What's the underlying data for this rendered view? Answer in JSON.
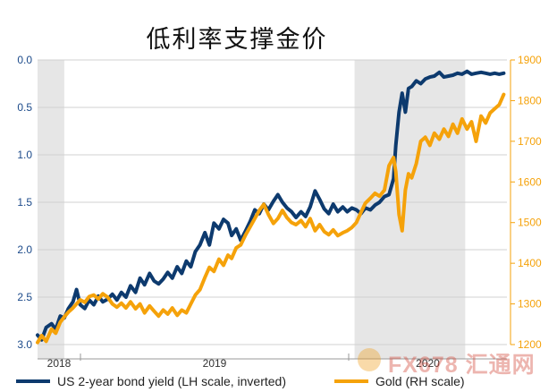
{
  "page": {
    "title": "低利率支撑金价"
  },
  "chart_data": {
    "type": "line",
    "title": "低利率支撑金价",
    "x_labels": [
      "2018",
      "2019",
      "2020"
    ],
    "left_axis": {
      "label": "US 2-year bond yield (LH scale, inverted)",
      "inverted": true,
      "ylim": [
        0.0,
        3.0
      ],
      "tick_labels": [
        "0.0",
        "0.5",
        "1.0",
        "1.5",
        "2.0",
        "2.5",
        "3.0"
      ],
      "color": "#1b4a8a"
    },
    "right_axis": {
      "label": "Gold (RH scale)",
      "ylim": [
        1200,
        1900
      ],
      "tick_labels": [
        "1900",
        "1800",
        "1700",
        "1600",
        "1500",
        "1400",
        "1300",
        "1200"
      ],
      "color": "#f5a20a"
    },
    "shaded_regions": [
      {
        "from": "2018-01",
        "to": "2018-03"
      },
      {
        "from": "2019-12",
        "to": "2020-08"
      }
    ],
    "grid": "horizontal",
    "legend_position": "bottom",
    "series": [
      {
        "name": "US 2-year bond yield (LH scale, inverted)",
        "axis": "left",
        "color": "#0d3a6e",
        "points": [
          [
            "2018-01-01",
            2.9
          ],
          [
            "2018-01-10",
            2.95
          ],
          [
            "2018-01-20",
            2.82
          ],
          [
            "2018-02-01",
            2.78
          ],
          [
            "2018-02-10",
            2.84
          ],
          [
            "2018-02-20",
            2.7
          ],
          [
            "2018-03-01",
            2.72
          ],
          [
            "2018-03-10",
            2.62
          ],
          [
            "2018-03-20",
            2.55
          ],
          [
            "2018-03-28",
            2.42
          ],
          [
            "2018-04-05",
            2.58
          ],
          [
            "2018-04-15",
            2.62
          ],
          [
            "2018-04-25",
            2.53
          ],
          [
            "2018-05-05",
            2.58
          ],
          [
            "2018-05-15",
            2.49
          ],
          [
            "2018-05-25",
            2.55
          ],
          [
            "2018-06-05",
            2.52
          ],
          [
            "2018-06-15",
            2.47
          ],
          [
            "2018-06-25",
            2.53
          ],
          [
            "2018-07-05",
            2.45
          ],
          [
            "2018-07-15",
            2.5
          ],
          [
            "2018-07-25",
            2.38
          ],
          [
            "2018-08-05",
            2.45
          ],
          [
            "2018-08-15",
            2.3
          ],
          [
            "2018-08-25",
            2.37
          ],
          [
            "2018-09-05",
            2.25
          ],
          [
            "2018-09-15",
            2.33
          ],
          [
            "2018-09-25",
            2.36
          ],
          [
            "2018-10-05",
            2.31
          ],
          [
            "2018-10-15",
            2.24
          ],
          [
            "2018-10-25",
            2.3
          ],
          [
            "2018-11-05",
            2.18
          ],
          [
            "2018-11-15",
            2.25
          ],
          [
            "2018-11-25",
            2.12
          ],
          [
            "2018-12-05",
            2.18
          ],
          [
            "2018-12-15",
            2.02
          ],
          [
            "2018-12-25",
            1.95
          ],
          [
            "2019-01-05",
            1.82
          ],
          [
            "2019-01-15",
            1.95
          ],
          [
            "2019-01-25",
            1.72
          ],
          [
            "2019-02-05",
            1.78
          ],
          [
            "2019-02-15",
            1.68
          ],
          [
            "2019-02-25",
            1.72
          ],
          [
            "2019-03-05",
            1.85
          ],
          [
            "2019-03-15",
            1.78
          ],
          [
            "2019-03-25",
            1.9
          ],
          [
            "2019-04-05",
            1.8
          ],
          [
            "2019-04-15",
            1.7
          ],
          [
            "2019-04-25",
            1.58
          ],
          [
            "2019-05-05",
            1.62
          ],
          [
            "2019-05-15",
            1.52
          ],
          [
            "2019-05-25",
            1.58
          ],
          [
            "2019-06-05",
            1.49
          ],
          [
            "2019-06-15",
            1.42
          ],
          [
            "2019-06-25",
            1.5
          ],
          [
            "2019-07-05",
            1.56
          ],
          [
            "2019-07-15",
            1.6
          ],
          [
            "2019-07-25",
            1.66
          ],
          [
            "2019-08-05",
            1.6
          ],
          [
            "2019-08-15",
            1.65
          ],
          [
            "2019-08-25",
            1.55
          ],
          [
            "2019-09-05",
            1.38
          ],
          [
            "2019-09-15",
            1.47
          ],
          [
            "2019-09-25",
            1.57
          ],
          [
            "2019-10-05",
            1.62
          ],
          [
            "2019-10-15",
            1.52
          ],
          [
            "2019-10-25",
            1.6
          ],
          [
            "2019-11-05",
            1.55
          ],
          [
            "2019-11-15",
            1.6
          ],
          [
            "2019-11-25",
            1.56
          ],
          [
            "2019-12-05",
            1.58
          ],
          [
            "2019-12-15",
            1.62
          ],
          [
            "2019-12-25",
            1.56
          ],
          [
            "2020-01-05",
            1.58
          ],
          [
            "2020-01-15",
            1.53
          ],
          [
            "2020-01-25",
            1.5
          ],
          [
            "2020-02-05",
            1.44
          ],
          [
            "2020-02-15",
            1.42
          ],
          [
            "2020-02-25",
            1.25
          ],
          [
            "2020-03-01",
            0.9
          ],
          [
            "2020-03-08",
            0.55
          ],
          [
            "2020-03-15",
            0.35
          ],
          [
            "2020-03-22",
            0.55
          ],
          [
            "2020-03-29",
            0.3
          ],
          [
            "2020-04-05",
            0.28
          ],
          [
            "2020-04-15",
            0.22
          ],
          [
            "2020-04-25",
            0.25
          ],
          [
            "2020-05-05",
            0.2
          ],
          [
            "2020-05-15",
            0.18
          ],
          [
            "2020-05-25",
            0.17
          ],
          [
            "2020-06-05",
            0.13
          ],
          [
            "2020-06-15",
            0.18
          ],
          [
            "2020-06-25",
            0.17
          ],
          [
            "2020-07-05",
            0.16
          ],
          [
            "2020-07-15",
            0.14
          ],
          [
            "2020-07-25",
            0.15
          ],
          [
            "2020-08-05",
            0.12
          ],
          [
            "2020-08-15",
            0.15
          ],
          [
            "2020-08-25",
            0.14
          ],
          [
            "2020-09-05",
            0.13
          ],
          [
            "2020-09-15",
            0.14
          ],
          [
            "2020-09-25",
            0.15
          ],
          [
            "2020-10-05",
            0.14
          ],
          [
            "2020-10-15",
            0.15
          ],
          [
            "2020-10-25",
            0.14
          ]
        ]
      },
      {
        "name": "Gold (RH scale)",
        "axis": "right",
        "color": "#f5a20a",
        "points": [
          [
            "2018-01-01",
            1205
          ],
          [
            "2018-01-10",
            1222
          ],
          [
            "2018-01-20",
            1208
          ],
          [
            "2018-02-01",
            1238
          ],
          [
            "2018-02-10",
            1228
          ],
          [
            "2018-02-20",
            1255
          ],
          [
            "2018-03-01",
            1268
          ],
          [
            "2018-03-10",
            1280
          ],
          [
            "2018-03-20",
            1290
          ],
          [
            "2018-03-28",
            1300
          ],
          [
            "2018-04-05",
            1310
          ],
          [
            "2018-04-15",
            1304
          ],
          [
            "2018-04-25",
            1318
          ],
          [
            "2018-05-05",
            1322
          ],
          [
            "2018-05-15",
            1312
          ],
          [
            "2018-05-25",
            1325
          ],
          [
            "2018-06-05",
            1316
          ],
          [
            "2018-06-15",
            1300
          ],
          [
            "2018-06-25",
            1292
          ],
          [
            "2018-07-05",
            1302
          ],
          [
            "2018-07-15",
            1290
          ],
          [
            "2018-07-25",
            1305
          ],
          [
            "2018-08-05",
            1288
          ],
          [
            "2018-08-15",
            1300
          ],
          [
            "2018-08-25",
            1278
          ],
          [
            "2018-09-05",
            1295
          ],
          [
            "2018-09-15",
            1282
          ],
          [
            "2018-09-25",
            1270
          ],
          [
            "2018-10-05",
            1285
          ],
          [
            "2018-10-15",
            1275
          ],
          [
            "2018-10-25",
            1290
          ],
          [
            "2018-11-05",
            1272
          ],
          [
            "2018-11-15",
            1285
          ],
          [
            "2018-11-25",
            1278
          ],
          [
            "2018-12-05",
            1300
          ],
          [
            "2018-12-15",
            1322
          ],
          [
            "2018-12-25",
            1335
          ],
          [
            "2019-01-05",
            1365
          ],
          [
            "2019-01-15",
            1390
          ],
          [
            "2019-01-25",
            1380
          ],
          [
            "2019-02-05",
            1410
          ],
          [
            "2019-02-15",
            1395
          ],
          [
            "2019-02-25",
            1420
          ],
          [
            "2019-03-05",
            1412
          ],
          [
            "2019-03-15",
            1438
          ],
          [
            "2019-03-25",
            1445
          ],
          [
            "2019-04-05",
            1470
          ],
          [
            "2019-04-15",
            1490
          ],
          [
            "2019-04-25",
            1510
          ],
          [
            "2019-05-05",
            1530
          ],
          [
            "2019-05-15",
            1545
          ],
          [
            "2019-05-25",
            1520
          ],
          [
            "2019-06-05",
            1498
          ],
          [
            "2019-06-15",
            1510
          ],
          [
            "2019-06-25",
            1530
          ],
          [
            "2019-07-05",
            1512
          ],
          [
            "2019-07-15",
            1500
          ],
          [
            "2019-07-25",
            1495
          ],
          [
            "2019-08-05",
            1505
          ],
          [
            "2019-08-15",
            1490
          ],
          [
            "2019-08-25",
            1510
          ],
          [
            "2019-09-05",
            1480
          ],
          [
            "2019-09-15",
            1495
          ],
          [
            "2019-09-25",
            1478
          ],
          [
            "2019-10-05",
            1470
          ],
          [
            "2019-10-15",
            1482
          ],
          [
            "2019-10-25",
            1468
          ],
          [
            "2019-11-05",
            1475
          ],
          [
            "2019-11-15",
            1480
          ],
          [
            "2019-11-25",
            1488
          ],
          [
            "2019-12-05",
            1500
          ],
          [
            "2019-12-15",
            1525
          ],
          [
            "2019-12-25",
            1548
          ],
          [
            "2020-01-05",
            1560
          ],
          [
            "2020-01-15",
            1572
          ],
          [
            "2020-01-25",
            1565
          ],
          [
            "2020-02-05",
            1580
          ],
          [
            "2020-02-15",
            1640
          ],
          [
            "2020-02-25",
            1660
          ],
          [
            "2020-03-01",
            1625
          ],
          [
            "2020-03-08",
            1520
          ],
          [
            "2020-03-15",
            1480
          ],
          [
            "2020-03-22",
            1580
          ],
          [
            "2020-03-29",
            1620
          ],
          [
            "2020-04-05",
            1610
          ],
          [
            "2020-04-15",
            1645
          ],
          [
            "2020-04-25",
            1700
          ],
          [
            "2020-05-05",
            1710
          ],
          [
            "2020-05-15",
            1690
          ],
          [
            "2020-05-25",
            1720
          ],
          [
            "2020-06-05",
            1705
          ],
          [
            "2020-06-15",
            1730
          ],
          [
            "2020-06-25",
            1712
          ],
          [
            "2020-07-05",
            1742
          ],
          [
            "2020-07-15",
            1720
          ],
          [
            "2020-07-25",
            1755
          ],
          [
            "2020-08-05",
            1730
          ],
          [
            "2020-08-15",
            1748
          ],
          [
            "2020-08-25",
            1700
          ],
          [
            "2020-09-05",
            1762
          ],
          [
            "2020-09-15",
            1745
          ],
          [
            "2020-09-25",
            1770
          ],
          [
            "2020-10-05",
            1780
          ],
          [
            "2020-10-15",
            1790
          ],
          [
            "2020-10-25",
            1815
          ]
        ]
      }
    ]
  },
  "legend": {
    "items": [
      {
        "label": "US 2-year bond yield (LH scale, inverted)",
        "color": "#0d3a6e"
      },
      {
        "label": "Gold (RH scale)",
        "color": "#f5a20a"
      }
    ]
  },
  "watermark": {
    "text": "FX678 汇通网"
  }
}
